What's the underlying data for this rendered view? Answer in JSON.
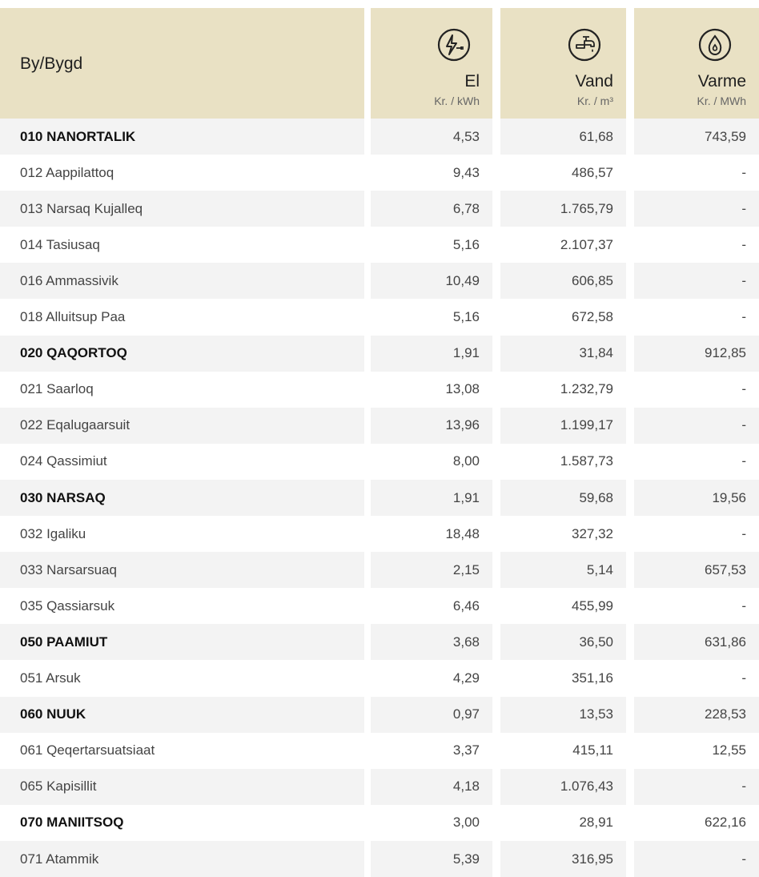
{
  "header": {
    "title": "By/Bygd",
    "columns": [
      {
        "name": "El",
        "unit": "Kr. / kWh"
      },
      {
        "name": "Vand",
        "unit": "Kr. / m³"
      },
      {
        "name": "Varme",
        "unit": "Kr. / MWh"
      }
    ]
  },
  "table": {
    "rows": [
      [
        "010 NANORTALIK",
        "4,53",
        "61,68",
        "743,59"
      ],
      [
        "012 Aappilattoq",
        "9,43",
        "486,57",
        "-"
      ],
      [
        "013 Narsaq Kujalleq",
        "6,78",
        "1.765,79",
        "-"
      ],
      [
        "014 Tasiusaq",
        "5,16",
        "2.107,37",
        "-"
      ],
      [
        "016 Ammassivik",
        "10,49",
        "606,85",
        "-"
      ],
      [
        "018 Alluitsup Paa",
        "5,16",
        "672,58",
        "-"
      ],
      [
        "020 QAQORTOQ",
        "1,91",
        "31,84",
        "912,85"
      ],
      [
        "021 Saarloq",
        "13,08",
        "1.232,79",
        "-"
      ],
      [
        "022 Eqalugaarsuit",
        "13,96",
        "1.199,17",
        "-"
      ],
      [
        "024 Qassimiut",
        "8,00",
        "1.587,73",
        "-"
      ],
      [
        "030 NARSAQ",
        "1,91",
        "59,68",
        "19,56"
      ],
      [
        "032 Igaliku",
        "18,48",
        "327,32",
        "-"
      ],
      [
        "033 Narsarsuaq",
        "2,15",
        "5,14",
        "657,53"
      ],
      [
        "035 Qassiarsuk",
        "6,46",
        "455,99",
        "-"
      ],
      [
        "050 PAAMIUT",
        "3,68",
        "36,50",
        "631,86"
      ],
      [
        "051 Arsuk",
        "4,29",
        "351,16",
        "-"
      ],
      [
        "060 NUUK",
        "0,97",
        "13,53",
        "228,53"
      ],
      [
        "061 Qeqertarsuatsiaat",
        "3,37",
        "415,11",
        "12,55"
      ],
      [
        "065 Kapisillit",
        "4,18",
        "1.076,43",
        "-"
      ],
      [
        "070 MANIITSOQ",
        "3,00",
        "28,91",
        "622,16"
      ],
      [
        "071 Atammik",
        "5,39",
        "316,95",
        "-"
      ]
    ]
  }
}
